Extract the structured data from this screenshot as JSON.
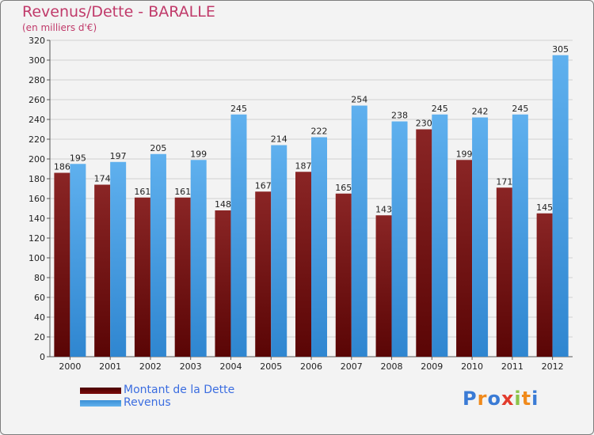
{
  "title": "Revenus/Dette - BARALLE",
  "subtitle": "(en milliers d'€)",
  "logo": {
    "text": "Proxiti",
    "colors": [
      "#3a7bd5",
      "#f08a1c",
      "#3a7bd5",
      "#e23b2c",
      "#8bc34a",
      "#f08a1c",
      "#3a7bd5"
    ]
  },
  "colors": {
    "dette_dark": "#4a0000",
    "dette_light": "#7a0b0b",
    "revenus_dark": "#2f86d0",
    "revenus_light": "#5fb0ee",
    "title": "#c03a6a",
    "legend_text": "#3b6de0"
  },
  "chart_data": {
    "type": "bar",
    "title": "Revenus/Dette - BARALLE",
    "subtitle": "(en milliers d'€)",
    "xlabel": "",
    "ylabel": "",
    "categories": [
      "2000",
      "2001",
      "2002",
      "2003",
      "2004",
      "2005",
      "2006",
      "2007",
      "2008",
      "2009",
      "2010",
      "2011",
      "2012"
    ],
    "series": [
      {
        "name": "Montant de la Dette",
        "values": [
          186,
          174,
          161,
          161,
          148,
          167,
          187,
          165,
          143,
          230,
          199,
          171,
          145
        ]
      },
      {
        "name": "Revenus",
        "values": [
          195,
          197,
          205,
          199,
          245,
          214,
          222,
          254,
          238,
          245,
          242,
          245,
          305
        ]
      }
    ],
    "ylim": [
      0,
      320
    ],
    "yticks": [
      0,
      20,
      40,
      60,
      80,
      100,
      120,
      140,
      160,
      180,
      200,
      220,
      240,
      260,
      280,
      300,
      320
    ],
    "grid": true,
    "legend_position": "bottom-left"
  }
}
